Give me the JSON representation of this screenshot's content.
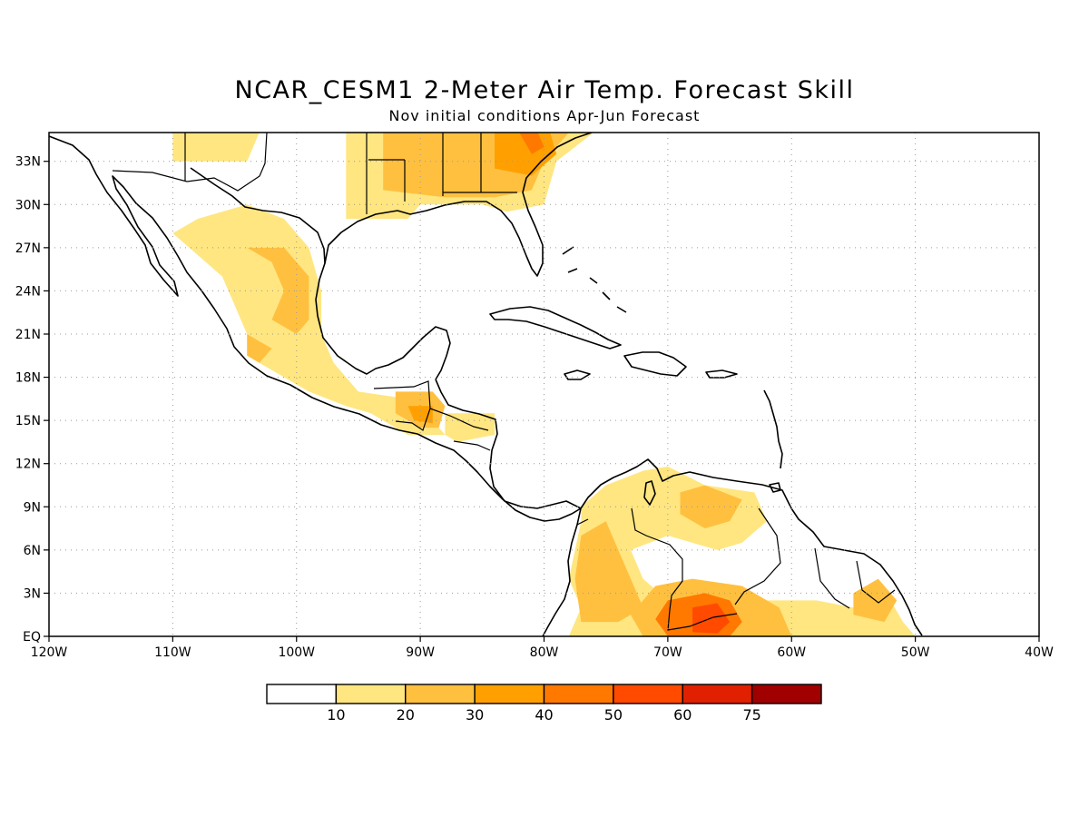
{
  "title": "NCAR_CESM1 2-Meter Air Temp. Forecast Skill",
  "subtitle": "Nov initial conditions  Apr-Jun Forecast",
  "map": {
    "lon_range": [
      -120,
      -40
    ],
    "lat_range": [
      0,
      35
    ],
    "x_ticks": [
      {
        "lon": -120,
        "label": "120W"
      },
      {
        "lon": -110,
        "label": "110W"
      },
      {
        "lon": -100,
        "label": "100W"
      },
      {
        "lon": -90,
        "label": "90W"
      },
      {
        "lon": -80,
        "label": "80W"
      },
      {
        "lon": -70,
        "label": "70W"
      },
      {
        "lon": -60,
        "label": "60W"
      },
      {
        "lon": -50,
        "label": "50W"
      },
      {
        "lon": -40,
        "label": "40W"
      }
    ],
    "y_ticks": [
      {
        "lat": 0,
        "label": "EQ"
      },
      {
        "lat": 3,
        "label": "3N"
      },
      {
        "lat": 6,
        "label": "6N"
      },
      {
        "lat": 9,
        "label": "9N"
      },
      {
        "lat": 12,
        "label": "12N"
      },
      {
        "lat": 15,
        "label": "15N"
      },
      {
        "lat": 18,
        "label": "18N"
      },
      {
        "lat": 21,
        "label": "21N"
      },
      {
        "lat": 24,
        "label": "24N"
      },
      {
        "lat": 27,
        "label": "27N"
      },
      {
        "lat": 30,
        "label": "30N"
      },
      {
        "lat": 33,
        "label": "33N"
      }
    ],
    "grid": "dotted"
  },
  "colorbar": {
    "colors": [
      "#ffffff",
      "#ffe680",
      "#ffc040",
      "#ffa000",
      "#ff7800",
      "#ff4a00",
      "#e02000",
      "#a00000"
    ],
    "labels": [
      "10",
      "20",
      "30",
      "40",
      "50",
      "60",
      "75"
    ]
  },
  "skill_regions": [
    {
      "name": "us-southeast",
      "color": "#ffe680",
      "points": [
        [
          -96,
          35
        ],
        [
          -96,
          29
        ],
        [
          -91,
          29
        ],
        [
          -90,
          30
        ],
        [
          -85,
          30
        ],
        [
          -83,
          29.5
        ],
        [
          -80,
          30
        ],
        [
          -79,
          33
        ],
        [
          -76,
          35
        ]
      ]
    },
    {
      "name": "us-southeast-core",
      "color": "#ffc040",
      "points": [
        [
          -93,
          35
        ],
        [
          -93,
          31
        ],
        [
          -88,
          30.5
        ],
        [
          -84,
          30.5
        ],
        [
          -81,
          31
        ],
        [
          -80,
          33
        ],
        [
          -78,
          35
        ]
      ]
    },
    {
      "name": "carolinas-hotspot",
      "color": "#ffa000",
      "points": [
        [
          -84,
          35
        ],
        [
          -84,
          32.5
        ],
        [
          -81,
          32
        ],
        [
          -79,
          33.5
        ],
        [
          -79.5,
          35
        ]
      ]
    },
    {
      "name": "carolinas-peak",
      "color": "#ff7800",
      "points": [
        [
          -82,
          35
        ],
        [
          -81,
          33.5
        ],
        [
          -80,
          34
        ],
        [
          -80.5,
          35
        ]
      ]
    },
    {
      "name": "texas-west",
      "color": "#ffe680",
      "points": [
        [
          -110,
          35
        ],
        [
          -110,
          33
        ],
        [
          -104,
          33
        ],
        [
          -103,
          35
        ]
      ]
    },
    {
      "name": "mexico-north",
      "color": "#ffe680",
      "points": [
        [
          -110,
          28
        ],
        [
          -108,
          29
        ],
        [
          -104,
          30
        ],
        [
          -101,
          29
        ],
        [
          -99,
          27
        ],
        [
          -98,
          24
        ],
        [
          -98,
          21
        ],
        [
          -97,
          19
        ],
        [
          -95,
          17
        ],
        [
          -91,
          16.5
        ],
        [
          -89,
          15
        ],
        [
          -88,
          14
        ],
        [
          -91,
          14
        ],
        [
          -94,
          15.5
        ],
        [
          -96,
          16
        ],
        [
          -99,
          17
        ],
        [
          -103,
          19
        ],
        [
          -104,
          21
        ],
        [
          -105,
          23
        ],
        [
          -106,
          25
        ],
        [
          -108,
          26.5
        ]
      ]
    },
    {
      "name": "mexico-central",
      "color": "#ffc040",
      "points": [
        [
          -104,
          27
        ],
        [
          -102,
          26
        ],
        [
          -101,
          24
        ],
        [
          -102,
          22
        ],
        [
          -100,
          21
        ],
        [
          -99,
          22
        ],
        [
          -99,
          25
        ],
        [
          -101,
          27
        ]
      ]
    },
    {
      "name": "mexico-south",
      "color": "#ffc040",
      "points": [
        [
          -104,
          21
        ],
        [
          -102,
          20
        ],
        [
          -103,
          19
        ],
        [
          -104,
          19.5
        ]
      ]
    },
    {
      "name": "guatemala",
      "color": "#ffc040",
      "points": [
        [
          -92,
          17
        ],
        [
          -89,
          17
        ],
        [
          -88,
          16
        ],
        [
          -88.5,
          14.5
        ],
        [
          -90,
          14.5
        ],
        [
          -92,
          15.5
        ]
      ]
    },
    {
      "name": "guatemala-core",
      "color": "#ffa000",
      "points": [
        [
          -91,
          16
        ],
        [
          -89,
          16
        ],
        [
          -89,
          14.8
        ],
        [
          -90.5,
          15
        ]
      ]
    },
    {
      "name": "honduras",
      "color": "#ffe680",
      "points": [
        [
          -88,
          15.5
        ],
        [
          -84,
          15.5
        ],
        [
          -84,
          14
        ],
        [
          -87,
          13.5
        ],
        [
          -88,
          14
        ]
      ]
    },
    {
      "name": "colombia-venezuela",
      "color": "#ffe680",
      "points": [
        [
          -77,
          9
        ],
        [
          -75,
          10.5
        ],
        [
          -72,
          11.5
        ],
        [
          -70,
          11.8
        ],
        [
          -67,
          10.5
        ],
        [
          -63,
          10
        ],
        [
          -62,
          8
        ],
        [
          -64,
          6.5
        ],
        [
          -66,
          6
        ],
        [
          -70,
          7
        ],
        [
          -73,
          6
        ],
        [
          -72,
          4
        ],
        [
          -70,
          2.5
        ],
        [
          -66,
          3
        ],
        [
          -62,
          2.5
        ],
        [
          -58,
          2.5
        ],
        [
          -55,
          2
        ],
        [
          -52,
          2.5
        ],
        [
          -51,
          1
        ],
        [
          -50,
          0
        ],
        [
          -78,
          0
        ],
        [
          -77,
          2
        ],
        [
          -78,
          4
        ],
        [
          -77.5,
          6
        ],
        [
          -77,
          8
        ]
      ]
    },
    {
      "name": "colombia-core",
      "color": "#ffc040",
      "points": [
        [
          -77,
          7
        ],
        [
          -75,
          8
        ],
        [
          -74,
          6
        ],
        [
          -73,
          4
        ],
        [
          -72,
          2
        ],
        [
          -74,
          1
        ],
        [
          -77,
          1
        ],
        [
          -77.5,
          4
        ]
      ]
    },
    {
      "name": "venezuela-north",
      "color": "#ffc040",
      "points": [
        [
          -69,
          10
        ],
        [
          -67,
          10.5
        ],
        [
          -64,
          9.5
        ],
        [
          -65,
          8
        ],
        [
          -67,
          7.5
        ],
        [
          -69,
          8.5
        ]
      ]
    },
    {
      "name": "amazon-hot",
      "color": "#ffc040",
      "points": [
        [
          -71,
          3.5
        ],
        [
          -68,
          4
        ],
        [
          -64,
          3.5
        ],
        [
          -61,
          2
        ],
        [
          -60,
          0
        ],
        [
          -72,
          0
        ],
        [
          -73,
          1.5
        ]
      ]
    },
    {
      "name": "amazon-core",
      "color": "#ff7800",
      "points": [
        [
          -70,
          2.5
        ],
        [
          -67,
          3
        ],
        [
          -65,
          2.5
        ],
        [
          -64,
          1
        ],
        [
          -65,
          0
        ],
        [
          -70,
          0
        ],
        [
          -71,
          1.2
        ]
      ]
    },
    {
      "name": "amazon-peak",
      "color": "#ff4a00",
      "points": [
        [
          -68,
          2
        ],
        [
          -66,
          2.3
        ],
        [
          -65,
          1
        ],
        [
          -66,
          0.2
        ],
        [
          -68,
          0.3
        ]
      ]
    },
    {
      "name": "guiana",
      "color": "#ffc040",
      "points": [
        [
          -55,
          3
        ],
        [
          -53,
          4
        ],
        [
          -51.5,
          2.5
        ],
        [
          -52.5,
          1
        ],
        [
          -55,
          1.5
        ]
      ]
    }
  ]
}
